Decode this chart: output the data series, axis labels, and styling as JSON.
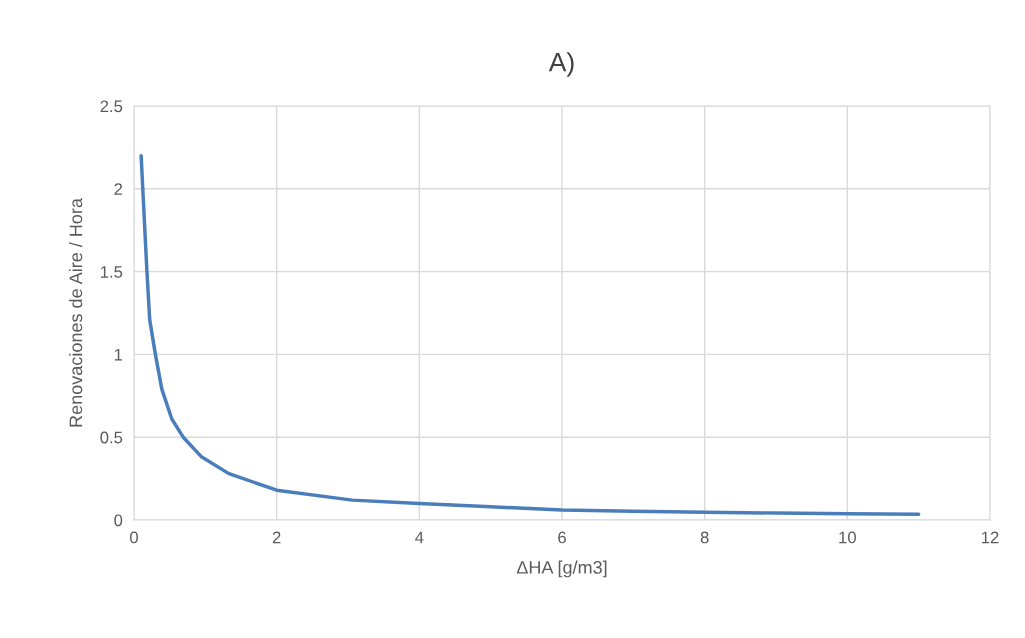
{
  "chart_data": {
    "type": "line",
    "title": "A)",
    "xlabel": "ΔHA [g/m3]",
    "ylabel": "Renovaciones de Aire / Hora",
    "x": [
      0.1,
      0.13,
      0.18,
      0.22,
      0.3,
      0.39,
      0.53,
      0.69,
      0.95,
      1.33,
      2.0,
      3.06,
      4.0,
      5.0,
      6.0,
      7.0,
      8.0,
      9.0,
      10.0,
      11.0
    ],
    "series": [
      {
        "color": "#4a7ebb",
        "values": [
          2.2,
          1.94,
          1.51,
          1.21,
          1.0,
          0.79,
          0.61,
          0.5,
          0.38,
          0.28,
          0.18,
          0.12,
          0.1,
          0.08,
          0.06,
          0.053,
          0.047,
          0.042,
          0.038,
          0.035
        ]
      }
    ],
    "xlim": [
      0,
      12
    ],
    "xticks": [
      0,
      2,
      4,
      6,
      8,
      10,
      12
    ],
    "ylim": [
      0,
      2.5
    ],
    "yticks": [
      0,
      0.5,
      1,
      1.5,
      2,
      2.5
    ],
    "grid": true,
    "marker": "none",
    "line_style": "solid"
  }
}
